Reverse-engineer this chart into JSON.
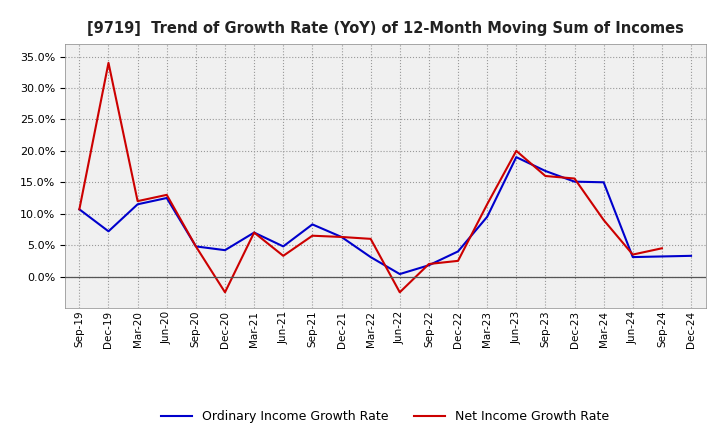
{
  "title": "[9719]  Trend of Growth Rate (YoY) of 12-Month Moving Sum of Incomes",
  "x_labels": [
    "Sep-19",
    "Dec-19",
    "Mar-20",
    "Jun-20",
    "Sep-20",
    "Dec-20",
    "Mar-21",
    "Jun-21",
    "Sep-21",
    "Dec-21",
    "Mar-22",
    "Jun-22",
    "Sep-22",
    "Dec-22",
    "Mar-23",
    "Jun-23",
    "Sep-23",
    "Dec-23",
    "Mar-24",
    "Jun-24",
    "Sep-24",
    "Dec-24"
  ],
  "ordinary_income": [
    0.107,
    0.072,
    0.115,
    0.125,
    0.048,
    0.042,
    0.07,
    0.048,
    0.083,
    0.063,
    0.031,
    0.004,
    0.018,
    0.04,
    0.095,
    0.19,
    0.168,
    0.151,
    0.15,
    0.031,
    0.032,
    0.033
  ],
  "net_income": [
    0.107,
    0.34,
    0.12,
    0.13,
    0.048,
    -0.025,
    0.07,
    0.033,
    0.065,
    0.063,
    0.06,
    -0.025,
    0.02,
    0.025,
    0.115,
    0.2,
    0.16,
    0.156,
    0.09,
    0.035,
    0.045,
    null
  ],
  "ordinary_color": "#0000cc",
  "net_color": "#cc0000",
  "ylim_min": -0.05,
  "ylim_max": 0.37,
  "ytick_vals": [
    0.0,
    0.05,
    0.1,
    0.15,
    0.2,
    0.25,
    0.3,
    0.35
  ],
  "legend_label_ordinary": "Ordinary Income Growth Rate",
  "legend_label_net": "Net Income Growth Rate",
  "background_color": "#ffffff",
  "plot_bg_color": "#f0f0f0",
  "grid_color": "#aaaaaa"
}
